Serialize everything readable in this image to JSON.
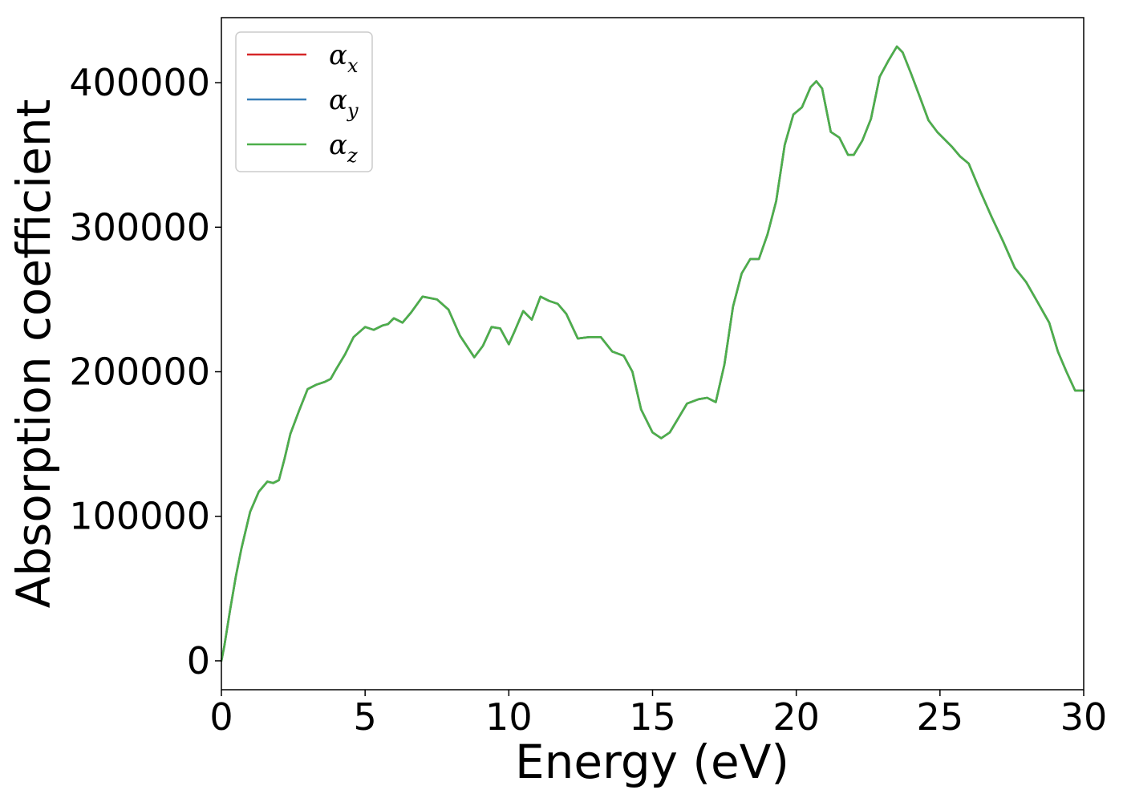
{
  "chart_data": {
    "type": "line",
    "xlabel": "Energy (eV)",
    "ylabel": "Absorption coefficient",
    "xlim": [
      0,
      30
    ],
    "ylim": [
      -20000,
      445000
    ],
    "xticks": [
      0,
      5,
      10,
      15,
      20,
      25,
      30
    ],
    "xtick_labels": [
      "0",
      "5",
      "10",
      "15",
      "20",
      "25",
      "30"
    ],
    "yticks": [
      0,
      100000,
      200000,
      300000,
      400000
    ],
    "ytick_labels": [
      "0",
      "100000",
      "200000",
      "300000",
      "400000"
    ],
    "grid": false,
    "legend_position": "top-left",
    "x": [
      0,
      0.1,
      0.3,
      0.5,
      0.7,
      1.0,
      1.3,
      1.6,
      1.8,
      2.0,
      2.2,
      2.4,
      2.7,
      3.0,
      3.3,
      3.6,
      3.8,
      4.0,
      4.3,
      4.6,
      5.0,
      5.3,
      5.6,
      5.8,
      6.0,
      6.3,
      6.6,
      7.0,
      7.5,
      7.9,
      8.3,
      8.8,
      9.1,
      9.4,
      9.7,
      10.0,
      10.2,
      10.5,
      10.8,
      11.1,
      11.4,
      11.7,
      12.0,
      12.4,
      12.8,
      13.2,
      13.6,
      14.0,
      14.3,
      14.6,
      15.0,
      15.3,
      15.6,
      15.9,
      16.2,
      16.6,
      16.9,
      17.2,
      17.5,
      17.8,
      18.1,
      18.4,
      18.7,
      19.0,
      19.3,
      19.6,
      19.9,
      20.2,
      20.5,
      20.7,
      20.9,
      21.2,
      21.5,
      21.8,
      22.0,
      22.3,
      22.6,
      22.9,
      23.2,
      23.5,
      23.7,
      24.0,
      24.3,
      24.6,
      24.9,
      25.1,
      25.4,
      25.7,
      26.0,
      26.4,
      26.8,
      27.2,
      27.6,
      28.0,
      28.4,
      28.8,
      29.1,
      29.4,
      29.7,
      30.0
    ],
    "series": [
      {
        "name": "α_x",
        "color": "#d62728",
        "values": [
          0,
          10000,
          35000,
          58000,
          78000,
          103000,
          117000,
          124000,
          123000,
          125000,
          140000,
          157000,
          173000,
          188000,
          191000,
          193000,
          195000,
          202000,
          212000,
          224000,
          231000,
          229000,
          232000,
          233000,
          237000,
          234000,
          241000,
          252000,
          250000,
          243000,
          225000,
          210000,
          218000,
          231000,
          230000,
          219000,
          228000,
          242000,
          236000,
          252000,
          249000,
          247000,
          240000,
          223000,
          224000,
          224000,
          214000,
          211000,
          200000,
          174000,
          158000,
          154000,
          158000,
          168000,
          178000,
          181000,
          182000,
          179000,
          205000,
          245000,
          268000,
          278000,
          278000,
          295000,
          318000,
          357000,
          378000,
          383000,
          397000,
          401000,
          396000,
          366000,
          362000,
          350000,
          350000,
          360000,
          375000,
          404000,
          415000,
          425000,
          421000,
          406000,
          390000,
          374000,
          366000,
          362000,
          356000,
          349000,
          344000,
          325000,
          307000,
          290000,
          272000,
          262000,
          248000,
          234000,
          214000,
          200000,
          187000,
          187000
        ]
      },
      {
        "name": "α_y",
        "color": "#377eb8",
        "values": [
          0,
          10000,
          35000,
          58000,
          78000,
          103000,
          117000,
          124000,
          123000,
          125000,
          140000,
          157000,
          173000,
          188000,
          191000,
          193000,
          195000,
          202000,
          212000,
          224000,
          231000,
          229000,
          232000,
          233000,
          237000,
          234000,
          241000,
          252000,
          250000,
          243000,
          225000,
          210000,
          218000,
          231000,
          230000,
          219000,
          228000,
          242000,
          236000,
          252000,
          249000,
          247000,
          240000,
          223000,
          224000,
          224000,
          214000,
          211000,
          200000,
          174000,
          158000,
          154000,
          158000,
          168000,
          178000,
          181000,
          182000,
          179000,
          205000,
          245000,
          268000,
          278000,
          278000,
          295000,
          318000,
          357000,
          378000,
          383000,
          397000,
          401000,
          396000,
          366000,
          362000,
          350000,
          350000,
          360000,
          375000,
          404000,
          415000,
          425000,
          421000,
          406000,
          390000,
          374000,
          366000,
          362000,
          356000,
          349000,
          344000,
          325000,
          307000,
          290000,
          272000,
          262000,
          248000,
          234000,
          214000,
          200000,
          187000,
          187000
        ]
      },
      {
        "name": "α_z",
        "color": "#4daf4a",
        "values": [
          0,
          10000,
          35000,
          58000,
          78000,
          103000,
          117000,
          124000,
          123000,
          125000,
          140000,
          157000,
          173000,
          188000,
          191000,
          193000,
          195000,
          202000,
          212000,
          224000,
          231000,
          229000,
          232000,
          233000,
          237000,
          234000,
          241000,
          252000,
          250000,
          243000,
          225000,
          210000,
          218000,
          231000,
          230000,
          219000,
          228000,
          242000,
          236000,
          252000,
          249000,
          247000,
          240000,
          223000,
          224000,
          224000,
          214000,
          211000,
          200000,
          174000,
          158000,
          154000,
          158000,
          168000,
          178000,
          181000,
          182000,
          179000,
          205000,
          245000,
          268000,
          278000,
          278000,
          295000,
          318000,
          357000,
          378000,
          383000,
          397000,
          401000,
          396000,
          366000,
          362000,
          350000,
          350000,
          360000,
          375000,
          404000,
          415000,
          425000,
          421000,
          406000,
          390000,
          374000,
          366000,
          362000,
          356000,
          349000,
          344000,
          325000,
          307000,
          290000,
          272000,
          262000,
          248000,
          234000,
          214000,
          200000,
          187000,
          187000
        ]
      }
    ],
    "legend": [
      {
        "base": "α",
        "sub": "x",
        "color": "#d62728"
      },
      {
        "base": "α",
        "sub": "y",
        "color": "#377eb8"
      },
      {
        "base": "α",
        "sub": "z",
        "color": "#4daf4a"
      }
    ]
  }
}
